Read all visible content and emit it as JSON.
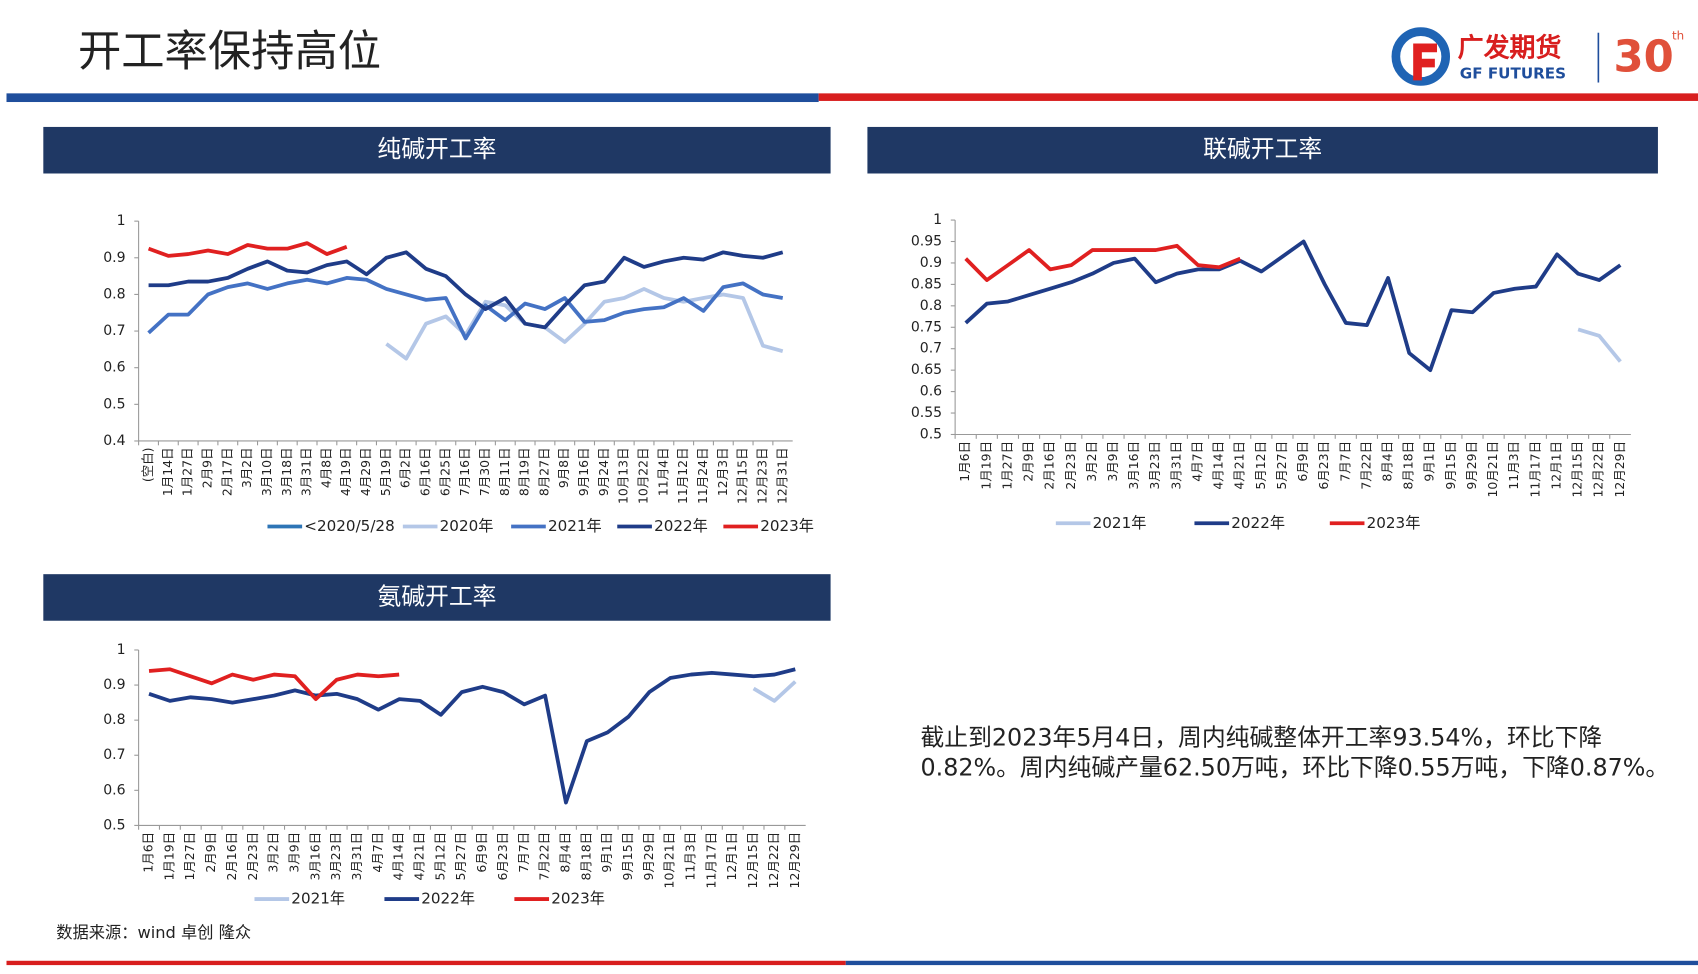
{
  "title": "开工率保持高位",
  "logo": {
    "name": "广发期货",
    "name_en": "GF FUTURES",
    "anniversary": "30",
    "suffix": "th"
  },
  "note_lines": [
    "截止到2023年5月4日，周内纯碱整体开工率93.54%，环比下降",
    "0.82%。周内纯碱产量62.50万吨，环比下降0.55万吨，下降0.87%。"
  ],
  "source": "数据来源：wind 卓创 隆众",
  "chart_data": [
    {
      "type": "line",
      "title": "纯碱开工率",
      "categories": [
        "(空白)",
        "1月14日",
        "1月27日",
        "2月9日",
        "2月17日",
        "3月2日",
        "3月10日",
        "3月18日",
        "3月31日",
        "4月8日",
        "4月19日",
        "4月29日",
        "5月19日",
        "6月2日",
        "6月16日",
        "6月25日",
        "7月16日",
        "7月30日",
        "8月11日",
        "8月19日",
        "8月27日",
        "9月8日",
        "9月16日",
        "9月24日",
        "10月13日",
        "10月22日",
        "11月4日",
        "11月12日",
        "11月24日",
        "12月3日",
        "12月15日",
        "12月23日",
        "12月31日"
      ],
      "ylim": [
        0.4,
        1
      ],
      "yticks": [
        0.4,
        0.5,
        0.6,
        0.7,
        0.8,
        0.9,
        1
      ],
      "legend": "bottom",
      "series": [
        {
          "name": "<2020/5/28",
          "color": "#2e75b6",
          "values": [
            null,
            null,
            null,
            null,
            null,
            null,
            null,
            null,
            null,
            null,
            null,
            null,
            null,
            null,
            null,
            null,
            null,
            null,
            null,
            null,
            null,
            null,
            null,
            null,
            null,
            null,
            null,
            null,
            null,
            null,
            null,
            null,
            null
          ]
        },
        {
          "name": "2020年",
          "color": "#b4c7e7",
          "values": [
            null,
            null,
            null,
            null,
            null,
            null,
            null,
            null,
            null,
            null,
            null,
            null,
            0.665,
            0.625,
            0.72,
            0.74,
            0.69,
            0.78,
            0.77,
            0.72,
            0.71,
            0.67,
            0.72,
            0.78,
            0.79,
            0.815,
            0.79,
            0.78,
            0.79,
            0.8,
            0.79,
            0.66,
            0.645
          ]
        },
        {
          "name": "2021年",
          "color": "#4472c4",
          "values": [
            0.695,
            0.745,
            0.745,
            0.8,
            0.82,
            0.83,
            0.815,
            0.83,
            0.84,
            0.83,
            0.845,
            0.84,
            0.815,
            0.8,
            0.785,
            0.79,
            0.68,
            0.77,
            0.73,
            0.775,
            0.76,
            0.79,
            0.725,
            0.73,
            0.75,
            0.76,
            0.765,
            0.79,
            0.755,
            0.82,
            0.83,
            0.8,
            0.79
          ]
        },
        {
          "name": "2022年",
          "color": "#1f3c88",
          "values": [
            0.825,
            0.825,
            0.835,
            0.835,
            0.845,
            0.87,
            0.89,
            0.865,
            0.86,
            0.88,
            0.89,
            0.855,
            0.9,
            0.915,
            0.87,
            0.85,
            0.8,
            0.76,
            0.79,
            0.72,
            0.71,
            0.77,
            0.825,
            0.835,
            0.9,
            0.875,
            0.89,
            0.9,
            0.895,
            0.915,
            0.905,
            0.9,
            0.915
          ]
        },
        {
          "name": "2023年",
          "color": "#e02020",
          "values": [
            0.925,
            0.905,
            0.91,
            0.92,
            0.91,
            0.935,
            0.925,
            0.925,
            0.94,
            0.91,
            0.93,
            null,
            null,
            null,
            null,
            null,
            null,
            null,
            null,
            null,
            null,
            null,
            null,
            null,
            null,
            null,
            null,
            null,
            null,
            null,
            null,
            null,
            null
          ]
        }
      ]
    },
    {
      "type": "line",
      "title": "联碱开工率",
      "categories": [
        "1月6日",
        "1月19日",
        "1月27日",
        "2月9日",
        "2月16日",
        "2月23日",
        "3月2日",
        "3月9日",
        "3月16日",
        "3月23日",
        "3月31日",
        "4月7日",
        "4月14日",
        "4月21日",
        "5月12日",
        "5月27日",
        "6月9日",
        "6月23日",
        "7月7日",
        "7月22日",
        "8月4日",
        "8月18日",
        "9月1日",
        "9月15日",
        "9月29日",
        "10月21日",
        "11月3日",
        "11月17日",
        "12月1日",
        "12月15日",
        "12月22日",
        "12月29日"
      ],
      "ylim": [
        0.5,
        1
      ],
      "yticks": [
        0.5,
        0.55,
        0.6,
        0.65,
        0.7,
        0.75,
        0.8,
        0.85,
        0.9,
        0.95,
        1
      ],
      "legend": "bottom",
      "series": [
        {
          "name": "2021年",
          "color": "#b4c7e7",
          "values": [
            null,
            null,
            null,
            null,
            null,
            null,
            null,
            null,
            null,
            null,
            null,
            null,
            null,
            null,
            null,
            null,
            null,
            null,
            null,
            null,
            null,
            null,
            null,
            null,
            null,
            null,
            null,
            null,
            null,
            0.745,
            0.73,
            0.67
          ]
        },
        {
          "name": "2022年",
          "color": "#1f3c88",
          "values": [
            0.76,
            0.805,
            0.81,
            0.825,
            0.84,
            0.855,
            0.875,
            0.9,
            0.91,
            0.855,
            0.875,
            0.885,
            0.885,
            0.905,
            0.88,
            0.915,
            0.95,
            0.85,
            0.76,
            0.755,
            0.865,
            0.69,
            0.65,
            0.79,
            0.785,
            0.83,
            0.84,
            0.845,
            0.92,
            0.875,
            0.86,
            0.895
          ]
        },
        {
          "name": "2023年",
          "color": "#e02020",
          "values": [
            0.91,
            0.86,
            0.895,
            0.93,
            0.885,
            0.895,
            0.93,
            0.93,
            0.93,
            0.93,
            0.94,
            0.895,
            0.89,
            0.91,
            null,
            null,
            null,
            null,
            null,
            null,
            null,
            null,
            null,
            null,
            null,
            null,
            null,
            null,
            null,
            null,
            null,
            null
          ]
        }
      ]
    },
    {
      "type": "line",
      "title": "氨碱开工率",
      "categories": [
        "1月6日",
        "1月19日",
        "1月27日",
        "2月9日",
        "2月16日",
        "2月23日",
        "3月2日",
        "3月9日",
        "3月16日",
        "3月23日",
        "3月31日",
        "4月7日",
        "4月14日",
        "4月21日",
        "5月12日",
        "5月27日",
        "6月9日",
        "6月23日",
        "7月7日",
        "7月22日",
        "8月4日",
        "8月18日",
        "9月1日",
        "9月15日",
        "9月29日",
        "10月21日",
        "11月3日",
        "11月17日",
        "12月1日",
        "12月15日",
        "12月22日",
        "12月29日"
      ],
      "ylim": [
        0.5,
        1
      ],
      "yticks": [
        0.5,
        0.6,
        0.7,
        0.8,
        0.9,
        1
      ],
      "legend": "bottom",
      "series": [
        {
          "name": "2021年",
          "color": "#b4c7e7",
          "values": [
            null,
            null,
            null,
            null,
            null,
            null,
            null,
            null,
            null,
            null,
            null,
            null,
            null,
            null,
            null,
            null,
            null,
            null,
            null,
            null,
            null,
            null,
            null,
            null,
            null,
            null,
            null,
            null,
            null,
            0.89,
            0.855,
            0.91
          ]
        },
        {
          "name": "2022年",
          "color": "#1f3c88",
          "values": [
            0.875,
            0.855,
            0.865,
            0.86,
            0.85,
            0.86,
            0.87,
            0.885,
            0.87,
            0.875,
            0.86,
            0.83,
            0.86,
            0.855,
            0.815,
            0.88,
            0.895,
            0.88,
            0.845,
            0.87,
            0.565,
            0.74,
            0.765,
            0.81,
            0.88,
            0.92,
            0.93,
            0.935,
            0.93,
            0.925,
            0.93,
            0.945
          ]
        },
        {
          "name": "2023年",
          "color": "#e02020",
          "values": [
            0.94,
            0.945,
            0.925,
            0.905,
            0.93,
            0.915,
            0.93,
            0.925,
            0.86,
            0.915,
            0.93,
            0.925,
            0.93,
            null,
            null,
            null,
            null,
            null,
            null,
            null,
            null,
            null,
            null,
            null,
            null,
            null,
            null,
            null,
            null,
            null,
            null,
            null
          ]
        }
      ]
    }
  ]
}
